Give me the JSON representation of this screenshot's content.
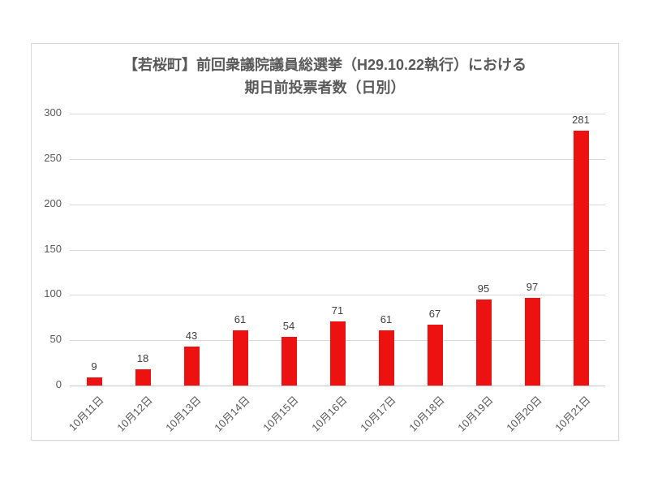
{
  "chart": {
    "title_line1": "【若桜町】前回衆議院議員総選挙（H29.10.22執行）における",
    "title_line2": "期日前投票者数（日別）"
  },
  "chart_data": {
    "type": "bar",
    "title": "【若桜町】前回衆議院議員総選挙（H29.10.22執行）における期日前投票者数（日別）",
    "categories": [
      "10月11日",
      "10月12日",
      "10月13日",
      "10月14日",
      "10月15日",
      "10月16日",
      "10月17日",
      "10月18日",
      "10月19日",
      "10月20日",
      "10月21日"
    ],
    "values": [
      9,
      18,
      43,
      61,
      54,
      71,
      61,
      67,
      95,
      97,
      281
    ],
    "xlabel": "",
    "ylabel": "",
    "ylim": [
      0,
      300
    ],
    "yticks": [
      0,
      50,
      100,
      150,
      200,
      250,
      300
    ],
    "grid": true,
    "legend_position": "none",
    "value_labels_shown": true,
    "x_label_rotation_deg": -45
  },
  "colors": {
    "bar": "#EE1111",
    "title_text": "#595959",
    "axis_text": "#595959",
    "value_label_text": "#404040",
    "gridline": "#D9D9D9",
    "axis_line": "#C8C8C8",
    "frame_border": "#D9D9D9",
    "background": "#FFFFFF"
  }
}
